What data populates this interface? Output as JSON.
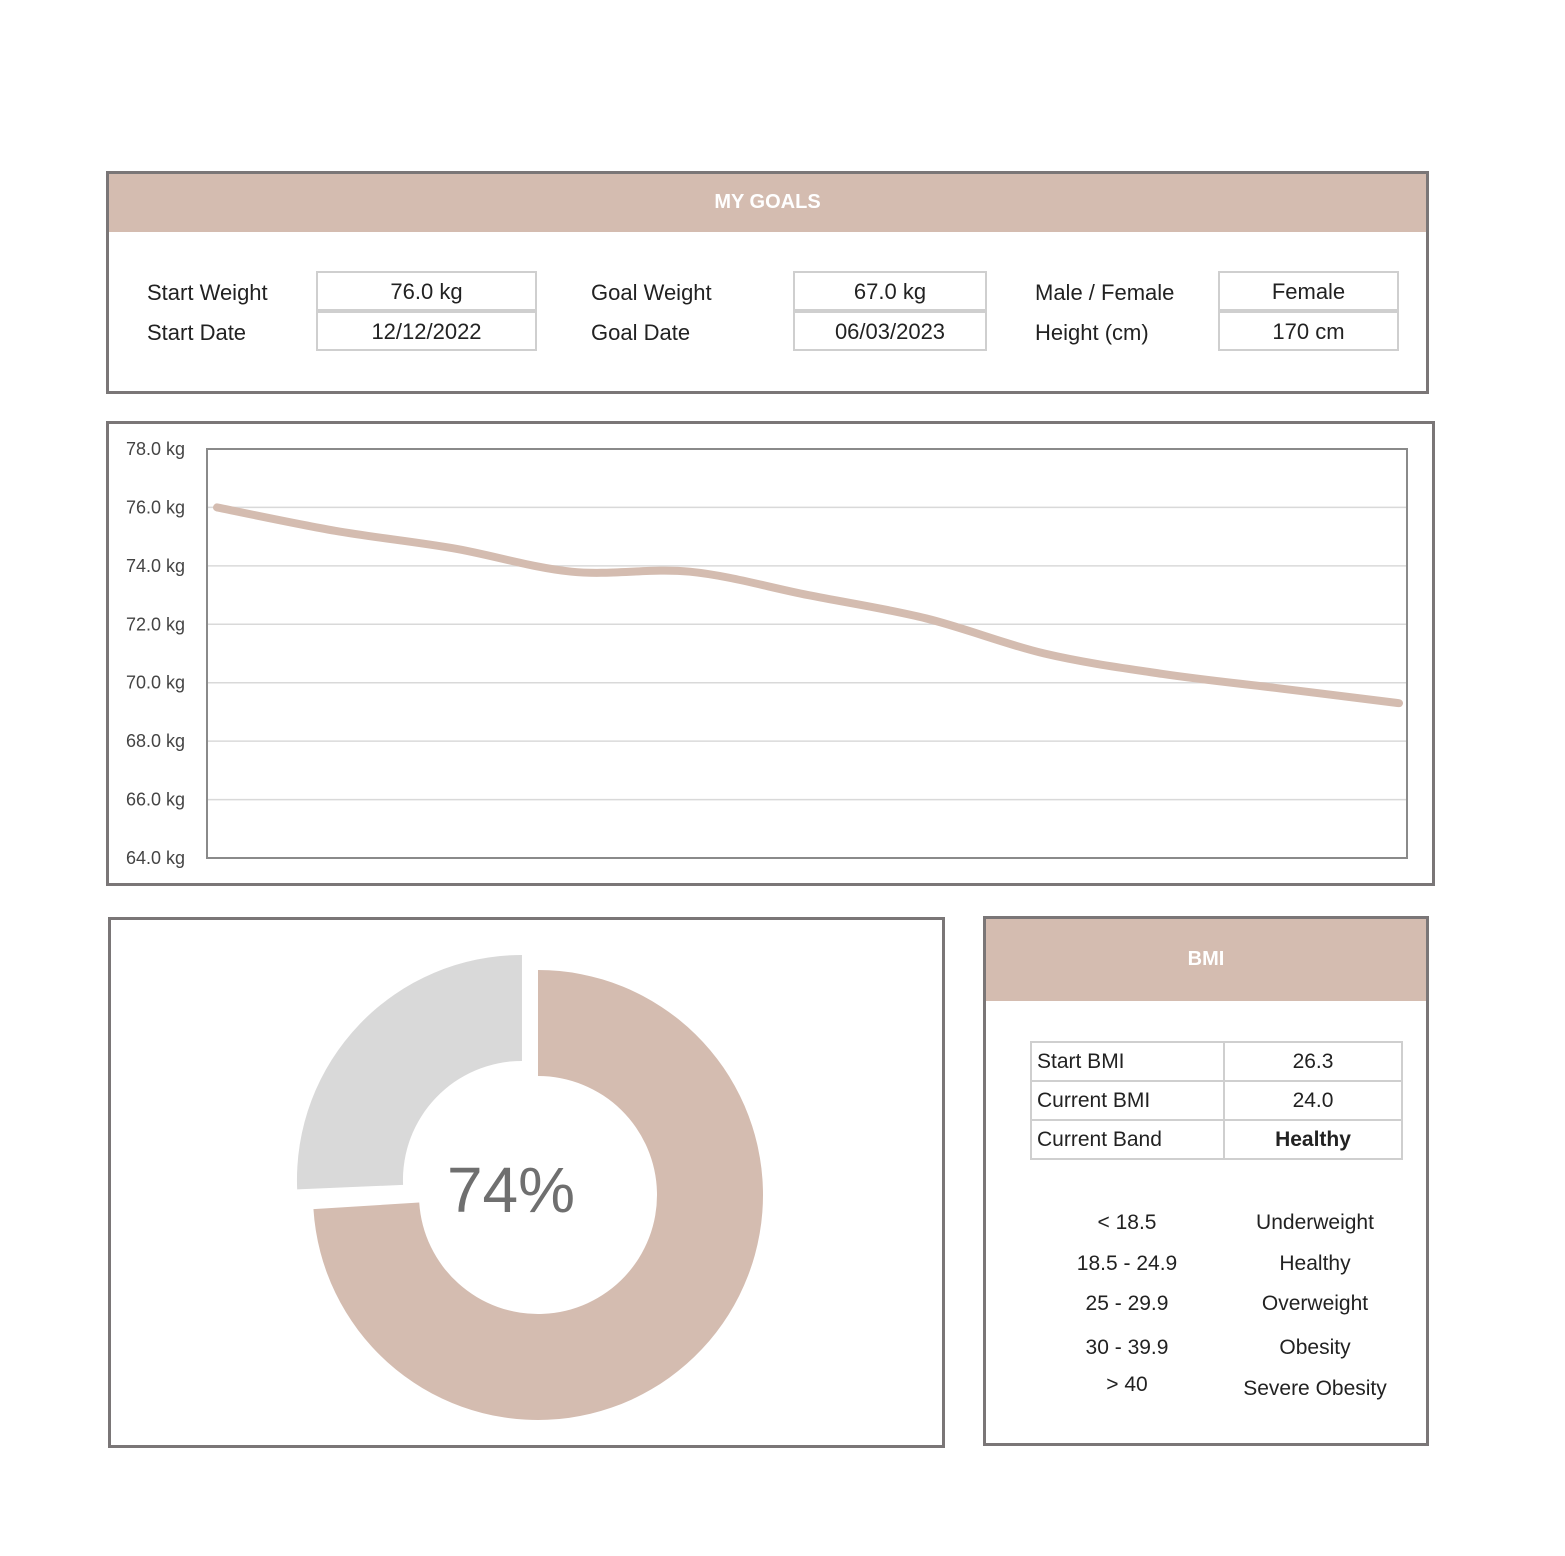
{
  "goals": {
    "title": "MY GOALS",
    "start_weight_label": "Start Weight",
    "start_weight": "76.0 kg",
    "start_date_label": "Start Date",
    "start_date": "12/12/2022",
    "goal_weight_label": "Goal Weight",
    "goal_weight": "67.0 kg",
    "goal_date_label": "Goal Date",
    "goal_date": "06/03/2023",
    "sex_label": "Male / Female",
    "sex": "Female",
    "height_label": "Height (cm)",
    "height": "170 cm"
  },
  "chart_data": {
    "type": "line",
    "title": "",
    "xlabel": "",
    "ylabel": "",
    "ylim": [
      64,
      78
    ],
    "yticks": [
      "78.0 kg",
      "76.0 kg",
      "74.0 kg",
      "72.0 kg",
      "70.0 kg",
      "68.0 kg",
      "66.0 kg",
      "64.0 kg"
    ],
    "grid": true,
    "x": [
      1,
      2,
      3,
      4,
      5,
      6,
      7,
      8,
      9,
      10,
      11
    ],
    "series": [
      {
        "values": [
          76.0,
          75.2,
          74.6,
          73.8,
          73.8,
          73.0,
          72.2,
          71.0,
          70.3,
          69.8,
          69.3
        ]
      }
    ],
    "color": "#d4bcb0"
  },
  "progress": {
    "percent_label": "74%",
    "value": 0.74,
    "done_color": "#d4bcb0",
    "remaining_color": "#d9d9d9"
  },
  "bmi": {
    "title": "BMI",
    "rows": [
      {
        "label": "Start BMI",
        "value": "26.3"
      },
      {
        "label": "Current BMI",
        "value": "24.0"
      },
      {
        "label": "Current Band",
        "value": "Healthy"
      }
    ],
    "bands": [
      {
        "range": "< 18.5",
        "name": "Underweight"
      },
      {
        "range": "18.5 - 24.9",
        "name": "Healthy"
      },
      {
        "range": "25 - 29.9",
        "name": "Overweight"
      },
      {
        "range": "30 - 39.9",
        "name": "Obesity"
      },
      {
        "range": "> 40",
        "name": "Severe Obesity"
      }
    ]
  }
}
